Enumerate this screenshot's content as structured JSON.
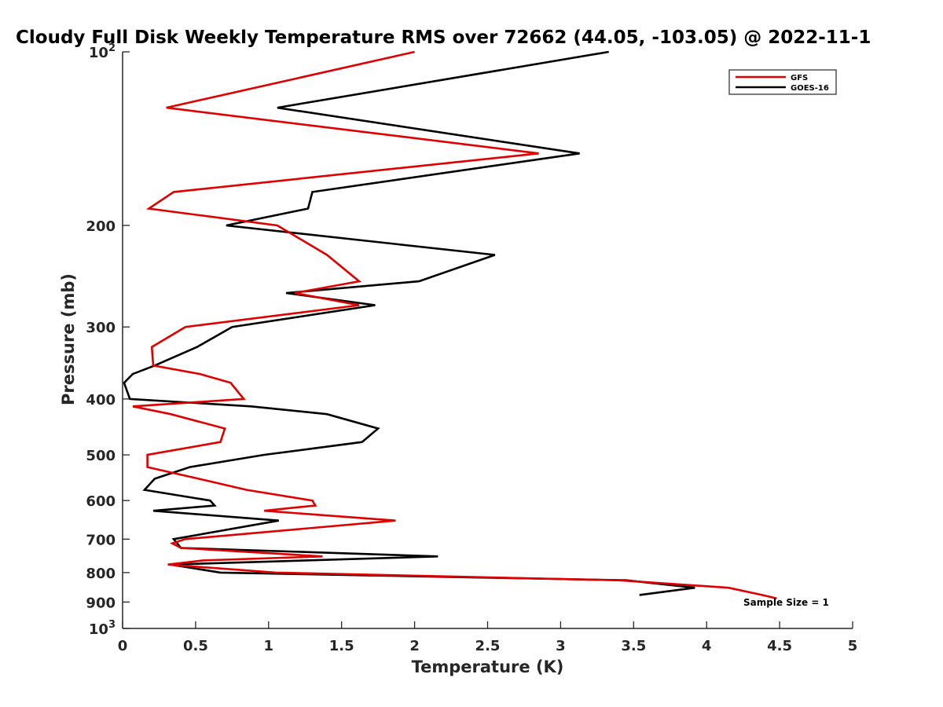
{
  "chart_data": {
    "type": "line",
    "title": "Cloudy Full Disk Weekly Temperature RMS over 72662 (44.05, -103.05) @ 2022-11-1",
    "xlabel": "Temperature (K)",
    "ylabel": "Pressure (mb)",
    "xlim": [
      0,
      5
    ],
    "ylim": [
      100,
      1000
    ],
    "y_scale": "log",
    "y_reversed": true,
    "x_ticks": [
      "0",
      "0.5",
      "1",
      "1.5",
      "2",
      "2.5",
      "3",
      "3.5",
      "4",
      "4.5",
      "5"
    ],
    "y_ticks": [
      {
        "value": 100,
        "base": "10",
        "exp": "2"
      },
      {
        "value": 200,
        "label": "200"
      },
      {
        "value": 300,
        "label": "300"
      },
      {
        "value": 400,
        "label": "400"
      },
      {
        "value": 500,
        "label": "500"
      },
      {
        "value": 600,
        "label": "600"
      },
      {
        "value": 700,
        "label": "700"
      },
      {
        "value": 800,
        "label": "800"
      },
      {
        "value": 900,
        "label": "900"
      },
      {
        "value": 1000,
        "base": "10",
        "exp": "3"
      }
    ],
    "grid": false,
    "legend_position": "top-right",
    "annotation": "Sample Size = 1",
    "series": [
      {
        "name": "GFS",
        "color": "#e00000",
        "points": [
          [
            2.0,
            100
          ],
          [
            0.3,
            125
          ],
          [
            2.85,
            150
          ],
          [
            0.35,
            175
          ],
          [
            0.18,
            187
          ],
          [
            1.06,
            200
          ],
          [
            1.4,
            225
          ],
          [
            1.62,
            250
          ],
          [
            1.18,
            262
          ],
          [
            1.62,
            275
          ],
          [
            0.43,
            300
          ],
          [
            0.2,
            325
          ],
          [
            0.21,
            350
          ],
          [
            0.53,
            362
          ],
          [
            0.74,
            375
          ],
          [
            0.83,
            400
          ],
          [
            0.07,
            412
          ],
          [
            0.33,
            425
          ],
          [
            0.7,
            450
          ],
          [
            0.67,
            475
          ],
          [
            0.17,
            500
          ],
          [
            0.17,
            525
          ],
          [
            0.52,
            550
          ],
          [
            0.85,
            575
          ],
          [
            1.3,
            600
          ],
          [
            1.32,
            612
          ],
          [
            0.97,
            625
          ],
          [
            1.87,
            650
          ],
          [
            0.43,
            700
          ],
          [
            0.34,
            712
          ],
          [
            0.4,
            725
          ],
          [
            1.37,
            750
          ],
          [
            0.55,
            762
          ],
          [
            0.31,
            775
          ],
          [
            1.05,
            800
          ],
          [
            3.4,
            825
          ],
          [
            4.15,
            850
          ],
          [
            4.38,
            875
          ],
          [
            4.48,
            887
          ]
        ]
      },
      {
        "name": "GOES-16",
        "color": "#000000",
        "points": [
          [
            3.33,
            100
          ],
          [
            1.06,
            125
          ],
          [
            3.13,
            150
          ],
          [
            1.3,
            175
          ],
          [
            1.27,
            187
          ],
          [
            0.71,
            200
          ],
          [
            2.55,
            225
          ],
          [
            2.03,
            250
          ],
          [
            1.12,
            262
          ],
          [
            1.73,
            275
          ],
          [
            0.75,
            300
          ],
          [
            0.51,
            325
          ],
          [
            0.22,
            350
          ],
          [
            0.07,
            362
          ],
          [
            0.01,
            375
          ],
          [
            0.05,
            400
          ],
          [
            0.88,
            412
          ],
          [
            1.4,
            425
          ],
          [
            1.75,
            450
          ],
          [
            1.64,
            475
          ],
          [
            0.97,
            500
          ],
          [
            0.46,
            525
          ],
          [
            0.22,
            550
          ],
          [
            0.15,
            575
          ],
          [
            0.6,
            600
          ],
          [
            0.63,
            612
          ],
          [
            0.21,
            625
          ],
          [
            1.07,
            650
          ],
          [
            0.35,
            700
          ],
          [
            0.4,
            725
          ],
          [
            2.16,
            750
          ],
          [
            0.33,
            775
          ],
          [
            0.67,
            800
          ],
          [
            3.45,
            825
          ],
          [
            3.92,
            850
          ],
          [
            3.54,
            875
          ]
        ]
      }
    ]
  }
}
